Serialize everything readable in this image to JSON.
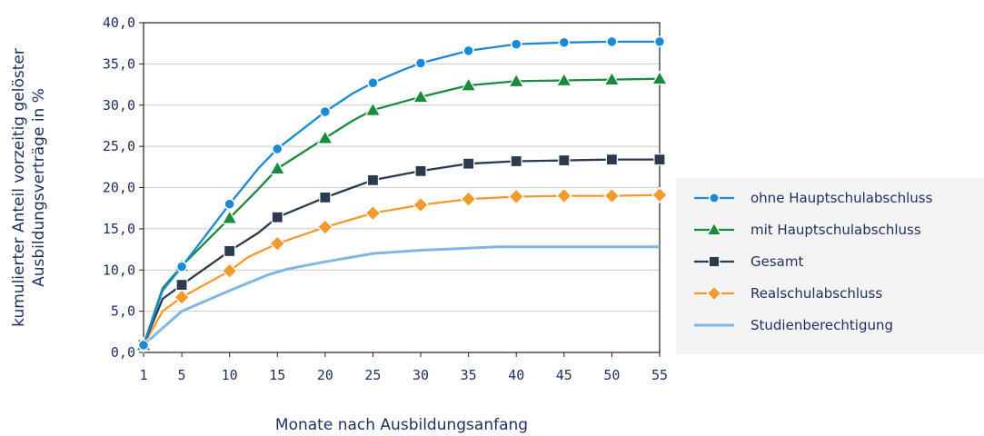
{
  "chart_data": {
    "type": "line",
    "xlabel": "Monate nach Ausbildungsanfang",
    "ylabel_lines": [
      "kumulierter Anteil vorzeitig gelöster",
      "Ausbildungsverträge in %"
    ],
    "x_ticks": [
      1,
      5,
      10,
      15,
      20,
      25,
      30,
      35,
      40,
      45,
      50,
      55
    ],
    "y_ticks": [
      "0,0",
      "5,0",
      "10,0",
      "15,0",
      "20,0",
      "25,0",
      "30,0",
      "35,0",
      "40,0"
    ],
    "xlim": [
      1,
      55
    ],
    "ylim": [
      0,
      40
    ],
    "grid": "horizontal",
    "legend_position": "right",
    "series": [
      {
        "name": "ohne Hauptschulabschluss",
        "color": "#1a8ad4",
        "marker": "circle",
        "x": [
          1,
          3,
          5,
          10,
          13,
          15,
          20,
          23,
          25,
          28,
          30,
          35,
          40,
          45,
          50,
          55
        ],
        "y": [
          0.9,
          7.5,
          10.4,
          18.0,
          22.3,
          24.7,
          29.2,
          31.5,
          32.7,
          34.2,
          35.1,
          36.6,
          37.4,
          37.6,
          37.7,
          37.7
        ],
        "marker_x": [
          1,
          5,
          10,
          15,
          20,
          25,
          30,
          35,
          40,
          45,
          50,
          55
        ],
        "marker_y": [
          0.9,
          10.4,
          18.0,
          24.7,
          29.2,
          32.7,
          35.1,
          36.6,
          37.4,
          37.6,
          37.7,
          37.7
        ]
      },
      {
        "name": "mit Hauptschulabschluss",
        "color": "#1a8a3c",
        "marker": "triangle",
        "x": [
          1,
          3,
          5,
          10,
          13,
          15,
          20,
          23,
          25,
          30,
          35,
          40,
          45,
          50,
          55
        ],
        "y": [
          0.9,
          7.8,
          10.5,
          16.3,
          19.8,
          22.3,
          26.0,
          28.2,
          29.4,
          31.0,
          32.4,
          32.9,
          33.0,
          33.1,
          33.2
        ],
        "marker_x": [
          1,
          5,
          10,
          15,
          20,
          25,
          30,
          35,
          40,
          45,
          50,
          55
        ],
        "marker_y": [
          0.9,
          10.5,
          16.3,
          22.3,
          26.0,
          29.4,
          31.0,
          32.4,
          32.9,
          33.0,
          33.1,
          33.2
        ]
      },
      {
        "name": "Gesamt",
        "color": "#2b3a4f",
        "marker": "square",
        "x": [
          1,
          3,
          5,
          10,
          13,
          15,
          20,
          25,
          30,
          35,
          40,
          45,
          50,
          55
        ],
        "y": [
          0.9,
          6.5,
          8.2,
          12.3,
          14.5,
          16.4,
          18.8,
          20.9,
          22.0,
          22.9,
          23.2,
          23.3,
          23.4,
          23.4
        ],
        "marker_x": [
          1,
          5,
          10,
          15,
          20,
          25,
          30,
          35,
          40,
          45,
          50,
          55
        ],
        "marker_y": [
          0.9,
          8.2,
          12.3,
          16.4,
          18.8,
          20.9,
          22.0,
          22.9,
          23.2,
          23.3,
          23.4,
          23.4
        ]
      },
      {
        "name": "Realschulabschluss",
        "color": "#f39a2e",
        "marker": "diamond",
        "x": [
          1,
          3,
          5,
          10,
          12,
          15,
          20,
          25,
          30,
          35,
          40,
          45,
          50,
          55
        ],
        "y": [
          0.9,
          5.0,
          6.7,
          9.9,
          11.6,
          13.2,
          15.2,
          16.9,
          17.9,
          18.6,
          18.9,
          19.0,
          19.0,
          19.1
        ],
        "marker_x": [
          1,
          5,
          10,
          15,
          20,
          25,
          30,
          35,
          40,
          45,
          50,
          55
        ],
        "marker_y": [
          0.9,
          6.7,
          9.9,
          13.2,
          15.2,
          16.9,
          17.9,
          18.6,
          18.9,
          19.0,
          19.0,
          19.1
        ]
      },
      {
        "name": "Studienberechtigung",
        "color": "#7fb7e3",
        "marker": "none",
        "x": [
          1,
          5,
          10,
          14,
          16,
          20,
          25,
          30,
          38,
          45,
          50,
          55
        ],
        "y": [
          0.9,
          5.0,
          7.5,
          9.4,
          10.1,
          11.0,
          12.0,
          12.4,
          12.8,
          12.8,
          12.8,
          12.8
        ],
        "marker_x": [],
        "marker_y": []
      }
    ]
  }
}
